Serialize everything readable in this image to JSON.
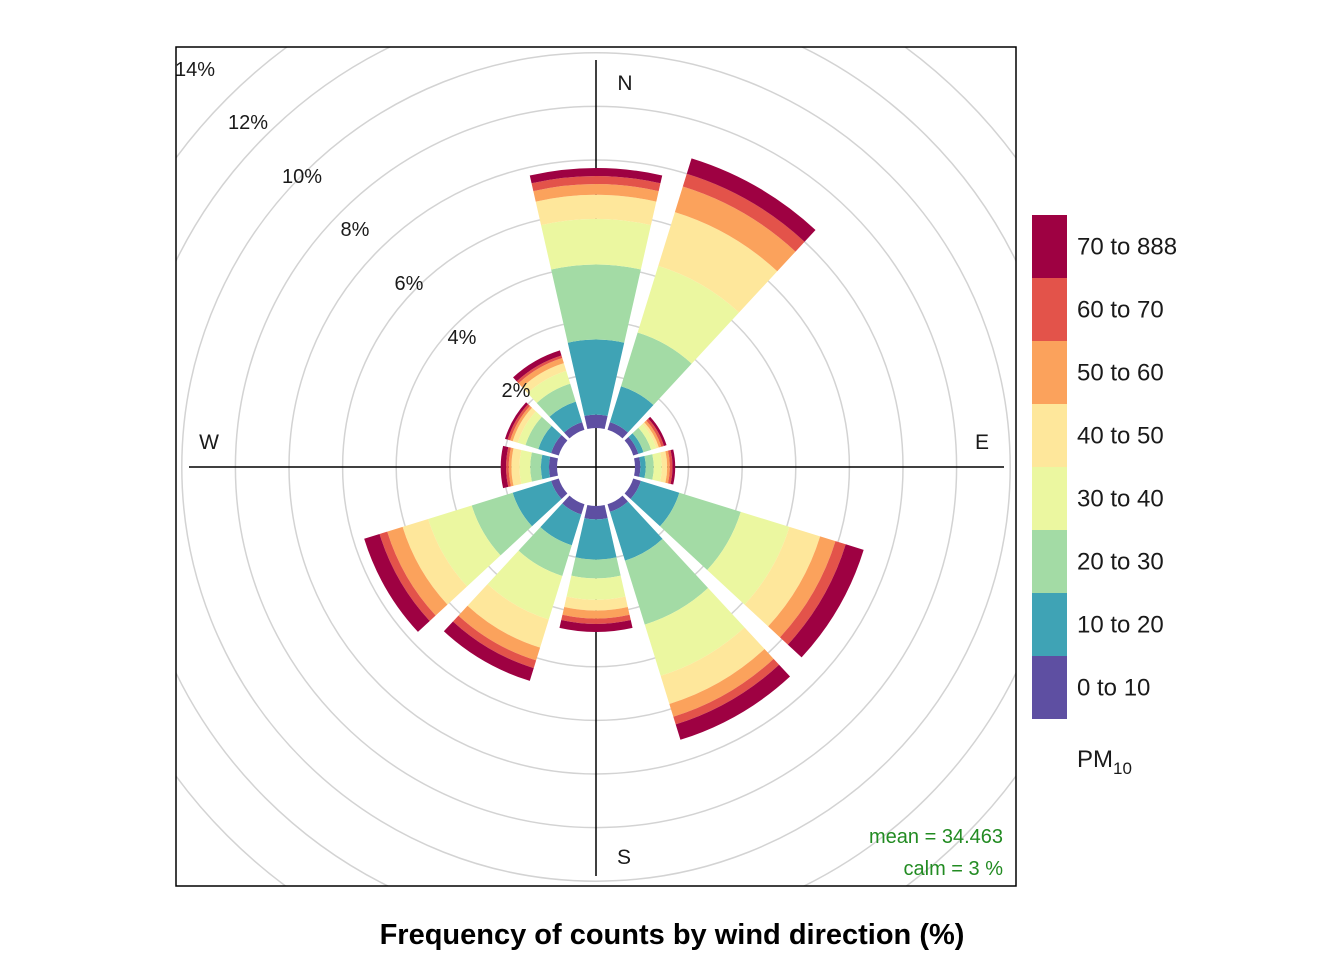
{
  "chart_data": {
    "type": "polar-stacked-bar",
    "title": "Frequency of counts by wind direction (%)",
    "legend_title": "PM",
    "legend_title_sub": "10",
    "legend_position": "right",
    "directions": [
      "N",
      "E",
      "S",
      "W"
    ],
    "radial_ticks": [
      "2%",
      "4%",
      "6%",
      "8%",
      "10%",
      "12%",
      "14%"
    ],
    "radial_values": [
      2,
      4,
      6,
      8,
      10,
      12,
      14
    ],
    "rlim": [
      0,
      14
    ],
    "bins": [
      {
        "label": "0 to 10",
        "color": "#5E4FA2"
      },
      {
        "label": "10 to 20",
        "color": "#3FA3B5"
      },
      {
        "label": "20 to 30",
        "color": "#A3DBA5"
      },
      {
        "label": "30 to 40",
        "color": "#EBF7A0"
      },
      {
        "label": "40 to 50",
        "color": "#FEE79B"
      },
      {
        "label": "50 to 60",
        "color": "#FBA25C"
      },
      {
        "label": "60 to 70",
        "color": "#E3534A"
      },
      {
        "label": "70 to 888",
        "color": "#9E0142"
      }
    ],
    "sectors": [
      {
        "angle": 0,
        "values": [
          0.5,
          2.8,
          2.8,
          1.7,
          0.9,
          0.4,
          0.3,
          0.3
        ]
      },
      {
        "angle": 30,
        "values": [
          0.3,
          1.4,
          2.1,
          2.6,
          2.1,
          1.0,
          0.5,
          0.6
        ]
      },
      {
        "angle": 60,
        "values": [
          0.2,
          0.2,
          0.3,
          0.2,
          0.1,
          0.1,
          0.1,
          0.1
        ]
      },
      {
        "angle": 90,
        "values": [
          0.2,
          0.2,
          0.3,
          0.3,
          0.2,
          0.1,
          0.1,
          0.1
        ]
      },
      {
        "angle": 120,
        "values": [
          0.3,
          1.5,
          2.4,
          1.9,
          1.2,
          0.6,
          0.4,
          0.7
        ]
      },
      {
        "angle": 150,
        "values": [
          0.3,
          1.9,
          2.5,
          2.0,
          1.1,
          0.5,
          0.3,
          0.6
        ]
      },
      {
        "angle": 180,
        "values": [
          0.5,
          1.5,
          0.7,
          0.8,
          0.4,
          0.3,
          0.2,
          0.3
        ]
      },
      {
        "angle": 210,
        "values": [
          0.4,
          1.2,
          1.2,
          1.7,
          1.1,
          0.5,
          0.3,
          0.5
        ]
      },
      {
        "angle": 240,
        "values": [
          0.3,
          1.5,
          1.6,
          1.7,
          1.0,
          0.6,
          0.3,
          0.6
        ]
      },
      {
        "angle": 270,
        "values": [
          0.3,
          0.3,
          0.4,
          0.4,
          0.3,
          0.1,
          0.1,
          0.2
        ]
      },
      {
        "angle": 300,
        "values": [
          0.3,
          0.5,
          0.5,
          0.3,
          0.2,
          0.1,
          0.1,
          0.1
        ]
      },
      {
        "angle": 330,
        "values": [
          0.3,
          0.8,
          0.7,
          0.5,
          0.3,
          0.2,
          0.1,
          0.2
        ]
      }
    ],
    "mean_text": "mean  =  34.463",
    "calm_text": "calm  =  3 %",
    "stat_color": "#228B22"
  }
}
